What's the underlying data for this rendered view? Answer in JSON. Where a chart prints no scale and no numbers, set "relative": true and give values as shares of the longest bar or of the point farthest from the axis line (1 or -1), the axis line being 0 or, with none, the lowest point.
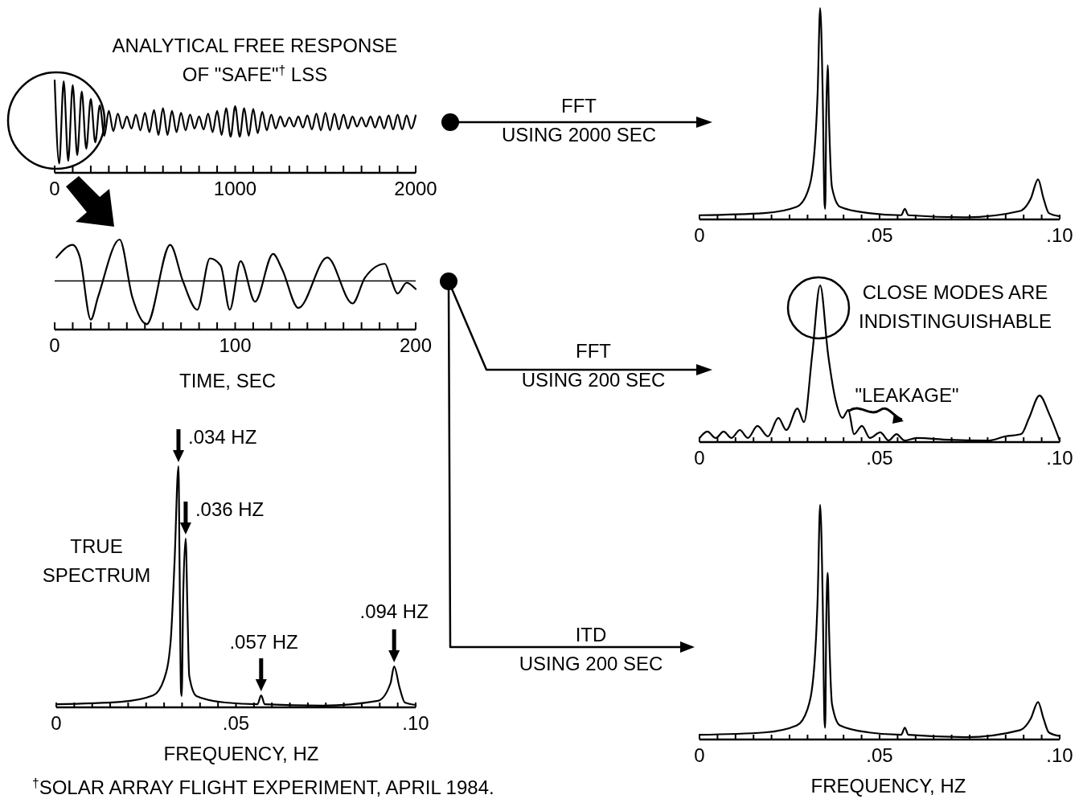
{
  "chart_data": [
    {
      "type": "line",
      "relative": true,
      "title": "ANALYTICAL FREE RESPONSE\nOF \"SAFE\"$^{†}$ LSS",
      "color": "#000000",
      "x": [
        0,
        25,
        50,
        75,
        100,
        125,
        150,
        175,
        200,
        225,
        250,
        275,
        300,
        325,
        350,
        375,
        400,
        425,
        450,
        475,
        500,
        525,
        550,
        575,
        600,
        625,
        650,
        675,
        700,
        725,
        750,
        775,
        800,
        825,
        850,
        875,
        900,
        925,
        950,
        975,
        1000,
        1025,
        1050,
        1075,
        1100,
        1125,
        1150,
        1175,
        1200,
        1225,
        1250,
        1275,
        1300,
        1325,
        1350,
        1375,
        1400,
        1425,
        1450,
        1475,
        1500,
        1525,
        1550,
        1575,
        1600,
        1625,
        1650,
        1675,
        1700,
        1725,
        1750,
        1775,
        1800,
        1825,
        1850,
        1875,
        1900,
        1925,
        1950,
        1975,
        2000
      ],
      "values": [
        1.0,
        0.1,
        0.99,
        0.13,
        0.95,
        0.19,
        0.88,
        0.26,
        0.8,
        0.33,
        0.73,
        0.4,
        0.67,
        0.45,
        0.64,
        0.48,
        0.61,
        0.48,
        0.63,
        0.46,
        0.65,
        0.44,
        0.68,
        0.41,
        0.7,
        0.41,
        0.67,
        0.44,
        0.65,
        0.46,
        0.63,
        0.48,
        0.61,
        0.47,
        0.64,
        0.44,
        0.67,
        0.41,
        0.7,
        0.39,
        0.72,
        0.39,
        0.7,
        0.4,
        0.69,
        0.43,
        0.66,
        0.46,
        0.63,
        0.48,
        0.61,
        0.5,
        0.6,
        0.5,
        0.61,
        0.49,
        0.62,
        0.47,
        0.64,
        0.46,
        0.65,
        0.46,
        0.64,
        0.47,
        0.63,
        0.48,
        0.61,
        0.5,
        0.6,
        0.5,
        0.61,
        0.49,
        0.61,
        0.48,
        0.62,
        0.47,
        0.63,
        0.47,
        0.62,
        0.48,
        0.62
      ],
      "xlim": [
        0,
        2000
      ],
      "xticks": [
        0,
        {
          "value": 100,
          "label": null
        },
        {
          "value": 200,
          "label": null
        },
        {
          "value": 300,
          "label": null
        },
        {
          "value": 400,
          "label": null
        },
        {
          "value": 500,
          "label": null
        },
        {
          "value": 600,
          "label": null
        },
        {
          "value": 700,
          "label": null
        },
        {
          "value": 800,
          "label": null
        },
        {
          "value": 900,
          "label": null
        },
        1000,
        {
          "value": 1100,
          "label": null
        },
        {
          "value": 1200,
          "label": null
        },
        {
          "value": 1300,
          "label": null
        },
        {
          "value": 1400,
          "label": null
        },
        {
          "value": 1500,
          "label": null
        },
        {
          "value": 1600,
          "label": null
        },
        {
          "value": 1700,
          "label": null
        },
        {
          "value": 1800,
          "label": null
        },
        {
          "value": 1900,
          "label": null
        },
        2000
      ]
    },
    {
      "type": "line",
      "relative": true,
      "xlabel": "TIME, SEC",
      "color": "#000000",
      "x": [
        1,
        10,
        14,
        20,
        24,
        36,
        43,
        51,
        64,
        71,
        79,
        86,
        92,
        97,
        103,
        111,
        121,
        126,
        135,
        151,
        165,
        172,
        183,
        186,
        190,
        195,
        200
      ],
      "values": [
        0.8,
        0.94,
        0.8,
        0.11,
        0.36,
        1.0,
        0.36,
        0.06,
        0.94,
        0.54,
        0.22,
        0.79,
        0.71,
        0.22,
        0.76,
        0.31,
        0.84,
        0.67,
        0.24,
        0.8,
        0.29,
        0.58,
        0.73,
        0.58,
        0.4,
        0.52,
        0.45
      ],
      "ref_lines": [
        {
          "axis": "y",
          "value": 0.54
        }
      ],
      "xlim": [
        0,
        200
      ],
      "xticks": [
        0,
        {
          "value": 10,
          "label": null
        },
        {
          "value": 20,
          "label": null
        },
        {
          "value": 30,
          "label": null
        },
        {
          "value": 40,
          "label": null
        },
        {
          "value": 50,
          "label": null
        },
        {
          "value": 60,
          "label": null
        },
        {
          "value": 70,
          "label": null
        },
        {
          "value": 80,
          "label": null
        },
        {
          "value": 90,
          "label": null
        },
        100,
        {
          "value": 110,
          "label": null
        },
        {
          "value": 120,
          "label": null
        },
        {
          "value": 130,
          "label": null
        },
        {
          "value": 140,
          "label": null
        },
        {
          "value": 150,
          "label": null
        },
        {
          "value": 160,
          "label": null
        },
        {
          "value": 170,
          "label": null
        },
        {
          "value": 180,
          "label": null
        },
        {
          "value": 190,
          "label": null
        },
        200
      ]
    },
    {
      "type": "line",
      "relative": true,
      "xlabel": "FREQUENCY, HZ",
      "color": "#000000",
      "x": [
        0,
        0.018,
        0.027,
        0.03,
        0.0318,
        0.0329,
        0.034,
        0.0343,
        0.0347,
        0.0349,
        0.0353,
        0.036,
        0.0365,
        0.037,
        0.039,
        0.047,
        0.056,
        0.057,
        0.058,
        0.074,
        0.0895,
        0.093,
        0.094,
        0.0955,
        0.097,
        0.1
      ],
      "values": [
        0.013,
        0.023,
        0.05,
        0.117,
        0.27,
        0.6,
        1.0,
        0.6,
        0.067,
        0.047,
        0.45,
        0.7,
        0.4,
        0.13,
        0.047,
        0.02,
        0.013,
        0.05,
        0.013,
        0.007,
        0.027,
        0.1,
        0.17,
        0.083,
        0.02,
        0.01
      ],
      "annotations": [
        {
          "text": ".034 HZ",
          "x": 0.034,
          "y": 1.0
        },
        {
          "text": ".036 HZ",
          "x": 0.036,
          "y": 0.7
        },
        {
          "text": ".057 HZ",
          "x": 0.057,
          "y": 0.05
        },
        {
          "text": ".094 HZ",
          "x": 0.094,
          "y": 0.17
        },
        "TRUE\nSPECTRUM",
        "$^{†}$SOLAR ARRAY FLIGHT EXPERIMENT, APRIL 1984."
      ],
      "xlim": [
        0,
        0.1
      ],
      "xticks": [
        0,
        {
          "value": 0.005,
          "label": null
        },
        {
          "value": 0.01,
          "label": null
        },
        {
          "value": 0.015,
          "label": null
        },
        {
          "value": 0.02,
          "label": null
        },
        {
          "value": 0.025,
          "label": null
        },
        {
          "value": 0.03,
          "label": null
        },
        {
          "value": 0.035,
          "label": null
        },
        {
          "value": 0.04,
          "label": null
        },
        {
          "value": 0.045,
          "label": null
        },
        {
          "value": 0.05,
          "label": ".05"
        },
        {
          "value": 0.055,
          "label": null
        },
        {
          "value": 0.06,
          "label": null
        },
        {
          "value": 0.065,
          "label": null
        },
        {
          "value": 0.07,
          "label": null
        },
        {
          "value": 0.075,
          "label": null
        },
        {
          "value": 0.08,
          "label": null
        },
        {
          "value": 0.085,
          "label": null
        },
        {
          "value": 0.09,
          "label": null
        },
        {
          "value": 0.095,
          "label": null
        },
        {
          "value": 0.1,
          "label": ".10"
        }
      ]
    },
    {
      "type": "line",
      "relative": true,
      "color": "#000000",
      "x": [
        0,
        0.018,
        0.027,
        0.03,
        0.0318,
        0.0328,
        0.0335,
        0.0342,
        0.0347,
        0.0349,
        0.0352,
        0.0356,
        0.036,
        0.0368,
        0.039,
        0.047,
        0.056,
        0.057,
        0.058,
        0.074,
        0.089,
        0.092,
        0.094,
        0.0955,
        0.097,
        0.1
      ],
      "values": [
        0.02,
        0.03,
        0.06,
        0.13,
        0.3,
        0.6,
        1.0,
        0.6,
        0.08,
        0.05,
        0.5,
        0.73,
        0.45,
        0.15,
        0.06,
        0.03,
        0.02,
        0.05,
        0.02,
        0.01,
        0.04,
        0.1,
        0.19,
        0.1,
        0.03,
        0.015
      ],
      "annotations": [
        "FFT\nUSING 2000 SEC"
      ],
      "xlim": [
        0,
        0.1
      ],
      "xticks": [
        0,
        {
          "value": 0.005,
          "label": null
        },
        {
          "value": 0.01,
          "label": null
        },
        {
          "value": 0.015,
          "label": null
        },
        {
          "value": 0.02,
          "label": null
        },
        {
          "value": 0.025,
          "label": null
        },
        {
          "value": 0.03,
          "label": null
        },
        {
          "value": 0.035,
          "label": null
        },
        {
          "value": 0.04,
          "label": null
        },
        {
          "value": 0.045,
          "label": null
        },
        {
          "value": 0.05,
          "label": ".05"
        },
        {
          "value": 0.055,
          "label": null
        },
        {
          "value": 0.06,
          "label": null
        },
        {
          "value": 0.065,
          "label": null
        },
        {
          "value": 0.07,
          "label": null
        },
        {
          "value": 0.075,
          "label": null
        },
        {
          "value": 0.08,
          "label": null
        },
        {
          "value": 0.085,
          "label": null
        },
        {
          "value": 0.09,
          "label": null
        },
        {
          "value": 0.095,
          "label": null
        },
        {
          "value": 0.1,
          "label": ".10"
        }
      ]
    },
    {
      "type": "line",
      "relative": true,
      "color": "#000000",
      "x": [
        0,
        0.0022,
        0.0045,
        0.0067,
        0.0089,
        0.0112,
        0.0134,
        0.0161,
        0.019,
        0.0219,
        0.0241,
        0.0272,
        0.029,
        0.0313,
        0.0335,
        0.0357,
        0.0379,
        0.0397,
        0.0413,
        0.0429,
        0.0451,
        0.0473,
        0.0502,
        0.0525,
        0.0547,
        0.0569,
        0.0603,
        0.0692,
        0.0804,
        0.0848,
        0.0893,
        0.0915,
        0.0944,
        0.0971,
        0.1
      ],
      "values": [
        0.026,
        0.067,
        0.026,
        0.067,
        0.026,
        0.077,
        0.026,
        0.103,
        0.036,
        0.154,
        0.077,
        0.215,
        0.128,
        0.56,
        1.0,
        0.56,
        0.256,
        0.154,
        0.205,
        0.051,
        0.103,
        0.026,
        0.062,
        0.01,
        0.051,
        0.01,
        0.026,
        0.015,
        0.01,
        0.036,
        0.051,
        0.154,
        0.297,
        0.179,
        0.01
      ],
      "annotations": [
        "FFT\nUSING 200 SEC",
        "CLOSE MODES ARE\nINDISTINGUISHABLE",
        "\"LEAKAGE\""
      ],
      "xlim": [
        0,
        0.1
      ],
      "xticks": [
        0,
        {
          "value": 0.005,
          "label": null
        },
        {
          "value": 0.01,
          "label": null
        },
        {
          "value": 0.015,
          "label": null
        },
        {
          "value": 0.02,
          "label": null
        },
        {
          "value": 0.025,
          "label": null
        },
        {
          "value": 0.03,
          "label": null
        },
        {
          "value": 0.035,
          "label": null
        },
        {
          "value": 0.04,
          "label": null
        },
        {
          "value": 0.045,
          "label": null
        },
        {
          "value": 0.05,
          "label": ".05"
        },
        {
          "value": 0.055,
          "label": null
        },
        {
          "value": 0.06,
          "label": null
        },
        {
          "value": 0.065,
          "label": null
        },
        {
          "value": 0.07,
          "label": null
        },
        {
          "value": 0.075,
          "label": null
        },
        {
          "value": 0.08,
          "label": null
        },
        {
          "value": 0.085,
          "label": null
        },
        {
          "value": 0.09,
          "label": null
        },
        {
          "value": 0.095,
          "label": null
        },
        {
          "value": 0.1,
          "label": ".10"
        }
      ]
    },
    {
      "type": "line",
      "relative": true,
      "xlabel": "FREQUENCY, HZ",
      "color": "#000000",
      "x": [
        0,
        0.018,
        0.027,
        0.03,
        0.0318,
        0.0328,
        0.0335,
        0.0342,
        0.0347,
        0.0349,
        0.0352,
        0.0356,
        0.036,
        0.0368,
        0.039,
        0.047,
        0.056,
        0.057,
        0.058,
        0.074,
        0.089,
        0.092,
        0.094,
        0.0955,
        0.097,
        0.1
      ],
      "values": [
        0.02,
        0.03,
        0.06,
        0.13,
        0.3,
        0.6,
        1.0,
        0.6,
        0.08,
        0.05,
        0.5,
        0.71,
        0.45,
        0.15,
        0.06,
        0.03,
        0.02,
        0.05,
        0.02,
        0.01,
        0.04,
        0.09,
        0.16,
        0.09,
        0.03,
        0.015
      ],
      "annotations": [
        "ITD\nUSING 200 SEC"
      ],
      "xlim": [
        0,
        0.1
      ],
      "xticks": [
        0,
        {
          "value": 0.005,
          "label": null
        },
        {
          "value": 0.01,
          "label": null
        },
        {
          "value": 0.015,
          "label": null
        },
        {
          "value": 0.02,
          "label": null
        },
        {
          "value": 0.025,
          "label": null
        },
        {
          "value": 0.03,
          "label": null
        },
        {
          "value": 0.035,
          "label": null
        },
        {
          "value": 0.04,
          "label": null
        },
        {
          "value": 0.045,
          "label": null
        },
        {
          "value": 0.05,
          "label": ".05"
        },
        {
          "value": 0.055,
          "label": null
        },
        {
          "value": 0.06,
          "label": null
        },
        {
          "value": 0.065,
          "label": null
        },
        {
          "value": 0.07,
          "label": null
        },
        {
          "value": 0.075,
          "label": null
        },
        {
          "value": 0.08,
          "label": null
        },
        {
          "value": 0.085,
          "label": null
        },
        {
          "value": 0.09,
          "label": null
        },
        {
          "value": 0.095,
          "label": null
        },
        {
          "value": 0.1,
          "label": ".10"
        }
      ]
    }
  ]
}
